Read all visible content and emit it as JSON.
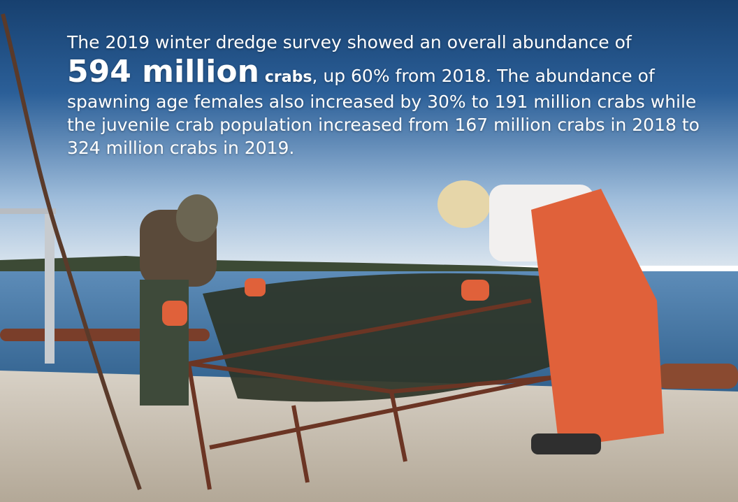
{
  "caption": {
    "line1": "The 2019 winter dredge survey showed an overall abundance of",
    "highlight_number": "594 million",
    "highlight_unit": "crabs",
    "rest": ", up 60% from 2018. The abundance of spawning age females also increased by 30% to 191 million crabs while the juvenile crab population increased from 167 million crabs in 2018 to 324 million crabs in 2019."
  },
  "colors": {
    "sky_top": "#1d4a85",
    "sky_bottom": "#c9d9ea",
    "water": "#3d6f9c",
    "bib_orange": "#e0613a",
    "dock": "#c9bfb3",
    "rust": "#7a3e2a"
  }
}
